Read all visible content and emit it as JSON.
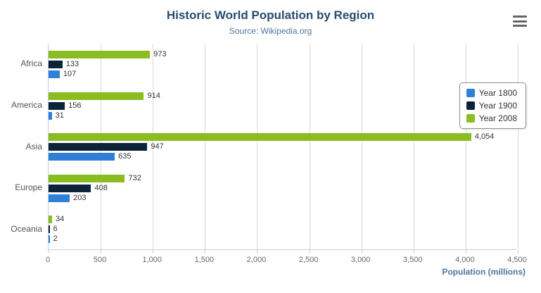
{
  "header": {
    "title": "Historic World Population by Region",
    "subtitle": "Source: Wikipedia.org"
  },
  "xaxis": {
    "title": "Population (millions)"
  },
  "menu": {
    "icon": "hamburger-icon"
  },
  "chart_data": {
    "type": "bar",
    "orientation": "horizontal",
    "title": "Historic World Population by Region",
    "subtitle": "Source: Wikipedia.org",
    "categories": [
      "Africa",
      "America",
      "Asia",
      "Europe",
      "Oceania"
    ],
    "series": [
      {
        "name": "Year 1800",
        "color": "#2f7ed8",
        "values": [
          107,
          31,
          635,
          203,
          2
        ]
      },
      {
        "name": "Year 1900",
        "color": "#0d233a",
        "values": [
          133,
          156,
          947,
          408,
          6
        ]
      },
      {
        "name": "Year 2008",
        "color": "#8bbc21",
        "values": [
          973,
          914,
          4054,
          732,
          34
        ]
      }
    ],
    "bar_order_top_to_bottom": [
      "Year 2008",
      "Year 1900",
      "Year 1800"
    ],
    "xlabel": "Population (millions)",
    "ylabel": "",
    "xlim": [
      0,
      4500
    ],
    "xticks": [
      0,
      500,
      1000,
      1500,
      2000,
      2500,
      3000,
      3500,
      4000,
      4500
    ],
    "grid": true,
    "data_labels": true,
    "legend_position": "right",
    "colors": {
      "title": "#274b6d",
      "subtitle": "#4d759e",
      "axis_line": "#c0d0e0",
      "gridline": "#d8d8d8",
      "tick_label": "#666666",
      "data_label": "#333333"
    }
  }
}
